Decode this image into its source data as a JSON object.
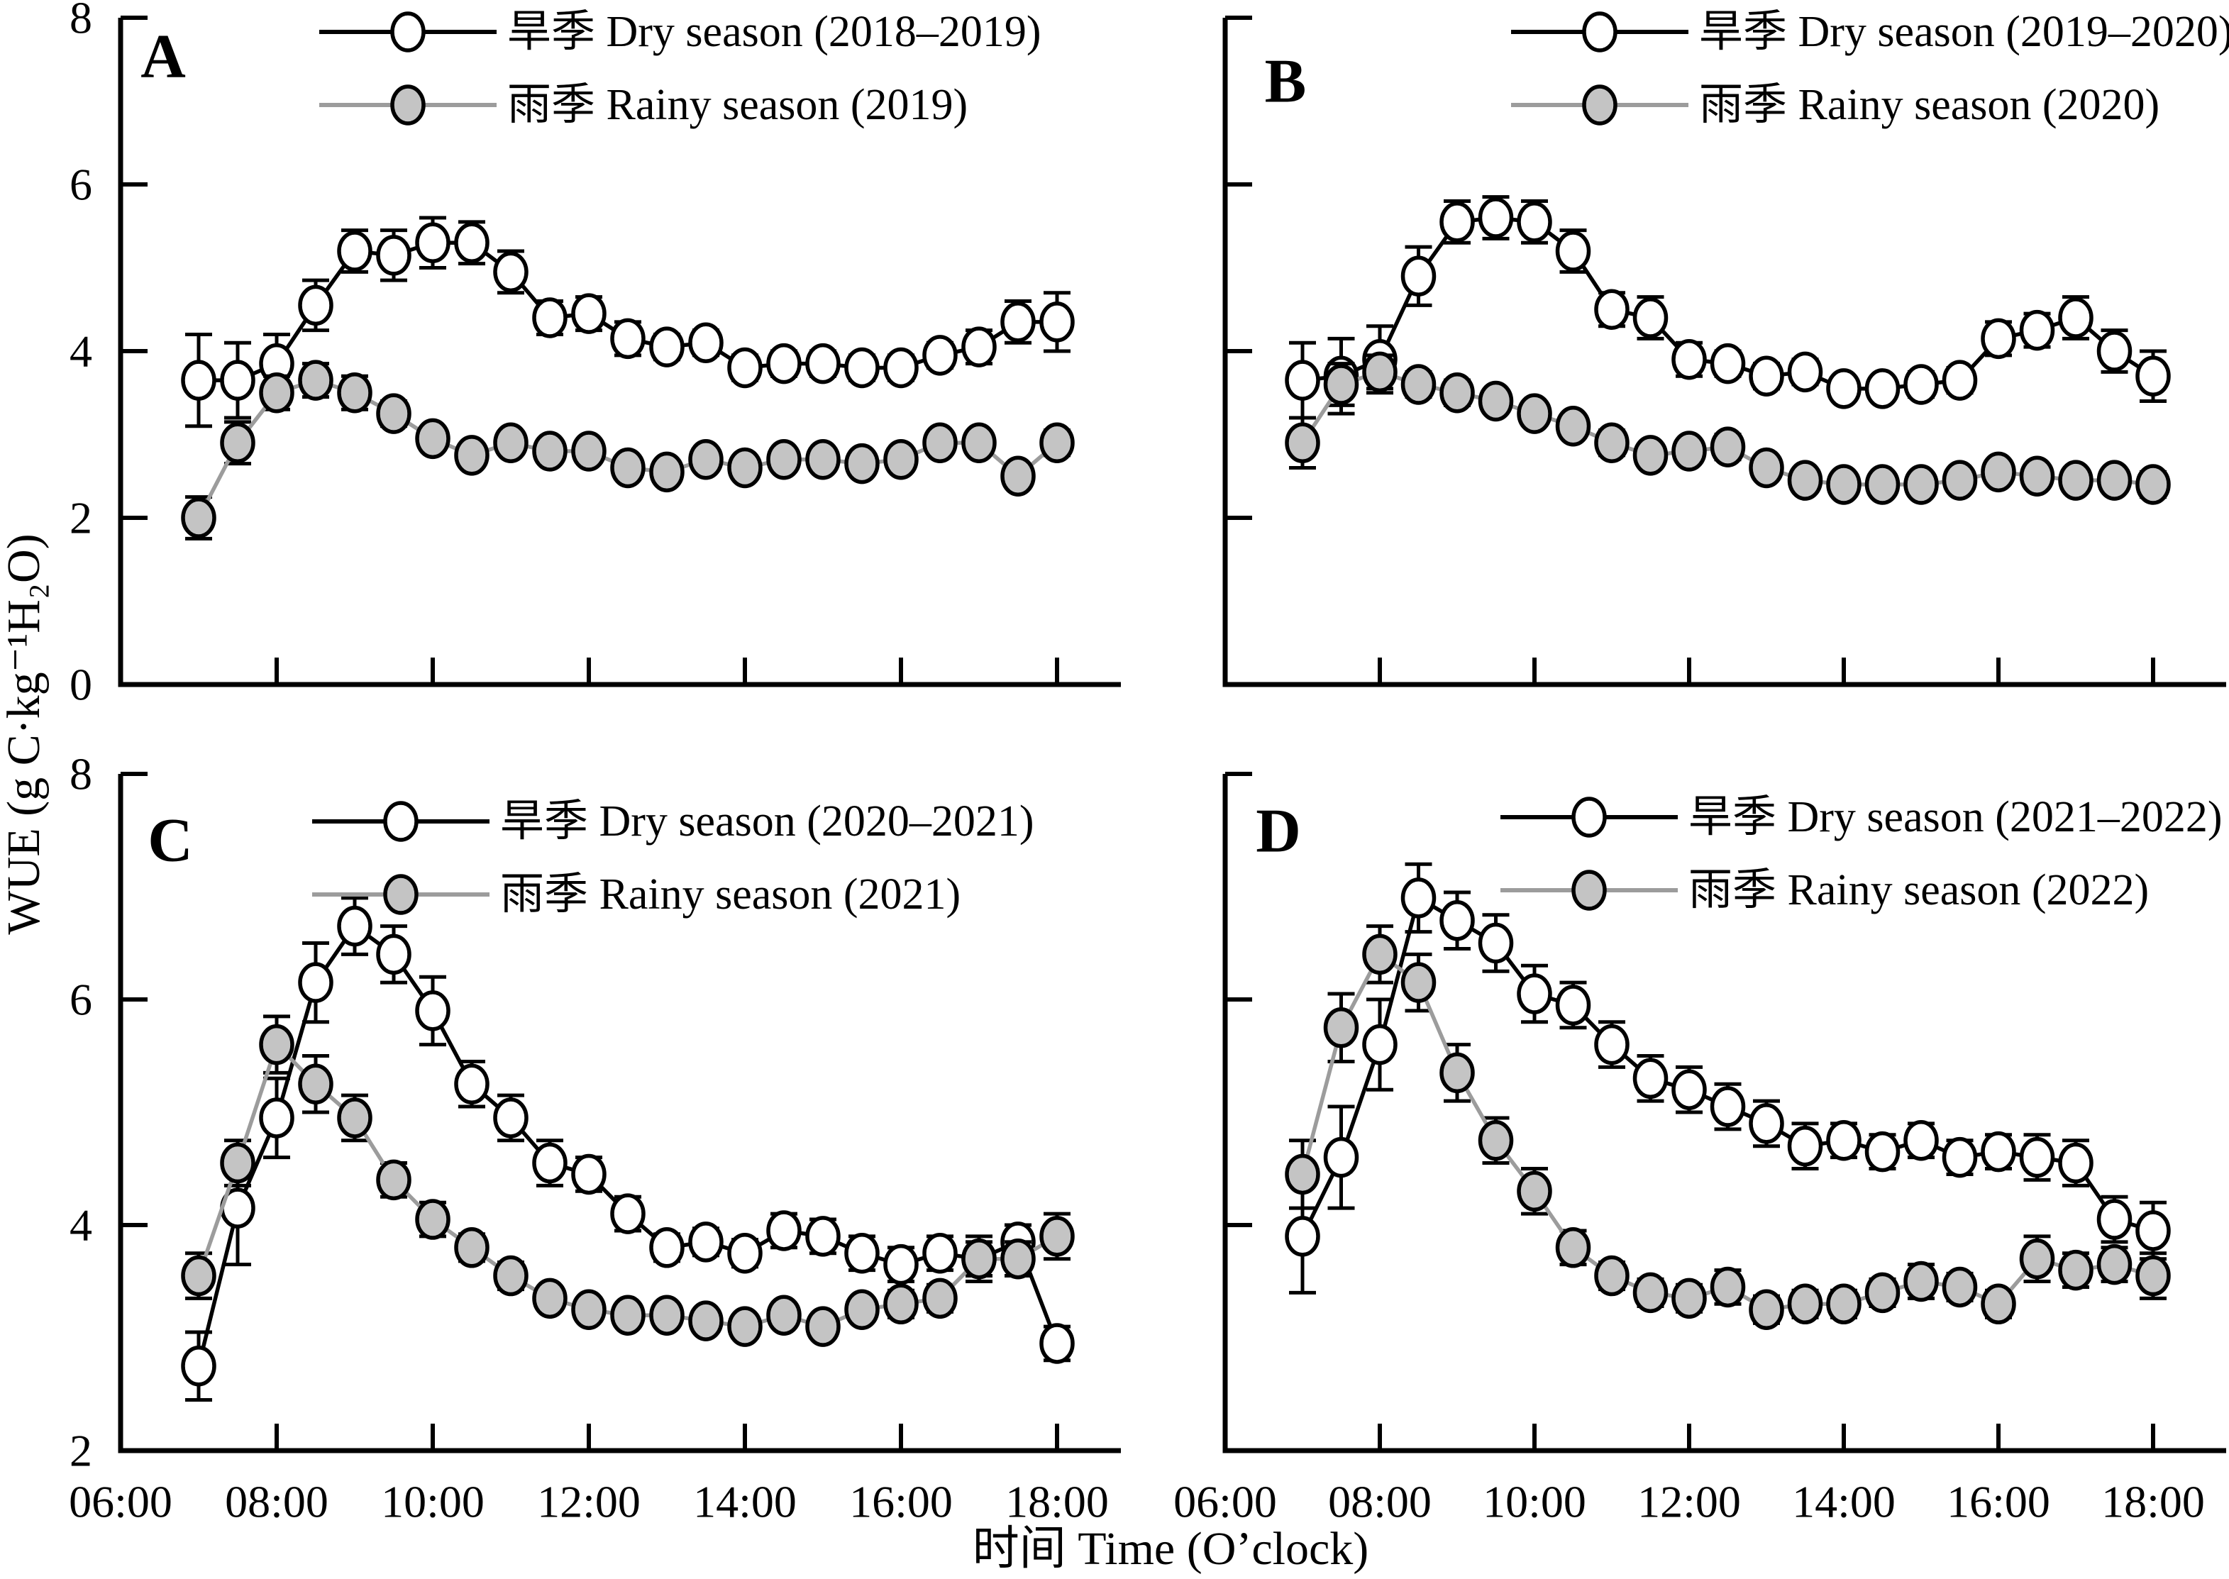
{
  "figure": {
    "y_axis_label": "WUE (g C·kg⁻¹H₂O)",
    "x_axis_label": "时间 Time (O’clock)",
    "background": "#ffffff"
  },
  "styles": {
    "dry": {
      "line_color": "#000000",
      "marker_fill": "#ffffff",
      "marker_stroke": "#000000"
    },
    "rainy": {
      "line_color": "#9c9c9c",
      "marker_fill": "#c4c4c4",
      "marker_stroke": "#000000"
    },
    "error_bar_color": "#000000",
    "axis_color": "#000000",
    "text_color": "#000000"
  },
  "axes": {
    "x_tick_labels": [
      "06:00",
      "08:00",
      "10:00",
      "12:00",
      "14:00",
      "16:00",
      "18:00"
    ],
    "x_tick_hours": [
      6,
      8,
      10,
      12,
      14,
      16,
      18
    ],
    "x_hours": [
      7,
      7.5,
      8,
      8.5,
      9,
      9.5,
      10,
      10.5,
      11,
      11.5,
      12,
      12.5,
      13,
      13.5,
      14,
      14.5,
      15,
      15.5,
      16,
      16.5,
      17,
      17.5,
      18
    ],
    "x_time_labels": [
      "07:00",
      "07:30",
      "08:00",
      "08:30",
      "09:00",
      "09:30",
      "10:00",
      "10:30",
      "11:00",
      "11:30",
      "12:00",
      "12:30",
      "13:00",
      "13:30",
      "14:00",
      "14:30",
      "15:00",
      "15:30",
      "16:00",
      "16:30",
      "17:00",
      "17:30",
      "18:00"
    ],
    "top_row_ylim": [
      0,
      8
    ],
    "top_row_yticks": [
      0,
      2,
      4,
      6,
      8
    ],
    "bottom_row_ylim": [
      2,
      8
    ],
    "bottom_row_yticks": [
      2,
      4,
      6,
      8
    ],
    "grid": "off",
    "legend_position": "top-inside"
  },
  "chart_data": [
    {
      "panel": "A",
      "type": "line",
      "title": "",
      "xlabel": "时间 Time (O’clock)",
      "ylabel": "WUE (g C·kg⁻¹H₂O)",
      "ylim": [
        0,
        8
      ],
      "series": [
        {
          "name": "旱季 Dry season (2018–2019)",
          "style": "dry",
          "values": [
            3.65,
            3.65,
            3.85,
            4.55,
            5.2,
            5.15,
            5.3,
            5.3,
            4.95,
            4.4,
            4.45,
            4.15,
            4.05,
            4.1,
            3.8,
            3.85,
            3.85,
            3.8,
            3.8,
            3.95,
            4.05,
            4.35,
            4.35
          ],
          "errors": [
            0.55,
            0.45,
            0.35,
            0.3,
            0.25,
            0.3,
            0.3,
            0.25,
            0.25,
            0.2,
            0.2,
            0.2,
            0.15,
            0.15,
            0.15,
            0.15,
            0.15,
            0.15,
            0.15,
            0.15,
            0.2,
            0.25,
            0.35
          ]
        },
        {
          "name": "雨季 Rainy season (2019)",
          "style": "rainy",
          "values": [
            2.0,
            2.9,
            3.5,
            3.65,
            3.5,
            3.25,
            2.95,
            2.75,
            2.9,
            2.8,
            2.8,
            2.6,
            2.55,
            2.7,
            2.6,
            2.7,
            2.7,
            2.65,
            2.7,
            2.9,
            2.9,
            2.5,
            2.9
          ],
          "errors": [
            0.25,
            0.25,
            0.2,
            0.2,
            0.2,
            0.15,
            0.12,
            0.12,
            0.12,
            0.1,
            0.1,
            0.1,
            0.1,
            0.1,
            0.1,
            0.1,
            0.12,
            0.1,
            0.12,
            0.12,
            0.12,
            0.12,
            0.15
          ]
        }
      ]
    },
    {
      "panel": "B",
      "type": "line",
      "title": "",
      "xlabel": "时间 Time (O’clock)",
      "ylabel": "WUE (g C·kg⁻¹H₂O)",
      "ylim": [
        0,
        8
      ],
      "series": [
        {
          "name": "旱季 Dry season (2019–2020)",
          "style": "dry",
          "values": [
            3.65,
            3.7,
            3.9,
            4.9,
            5.55,
            5.6,
            5.55,
            5.2,
            4.5,
            4.4,
            3.9,
            3.85,
            3.7,
            3.75,
            3.55,
            3.55,
            3.6,
            3.65,
            4.15,
            4.25,
            4.4,
            4.0,
            3.7
          ],
          "errors": [
            0.45,
            0.45,
            0.4,
            0.35,
            0.25,
            0.25,
            0.25,
            0.25,
            0.2,
            0.25,
            0.2,
            0.15,
            0.15,
            0.15,
            0.12,
            0.12,
            0.15,
            0.15,
            0.2,
            0.2,
            0.25,
            0.25,
            0.3
          ]
        },
        {
          "name": "雨季 Rainy season (2020)",
          "style": "rainy",
          "values": [
            2.9,
            3.6,
            3.75,
            3.6,
            3.5,
            3.4,
            3.25,
            3.1,
            2.9,
            2.75,
            2.8,
            2.85,
            2.6,
            2.45,
            2.4,
            2.4,
            2.4,
            2.45,
            2.55,
            2.5,
            2.45,
            2.45,
            2.4
          ],
          "errors": [
            0.3,
            0.25,
            0.2,
            0.15,
            0.15,
            0.12,
            0.12,
            0.12,
            0.15,
            0.12,
            0.12,
            0.15,
            0.12,
            0.1,
            0.1,
            0.1,
            0.12,
            0.1,
            0.1,
            0.1,
            0.1,
            0.1,
            0.15
          ]
        }
      ]
    },
    {
      "panel": "C",
      "type": "line",
      "title": "",
      "xlabel": "时间 Time (O’clock)",
      "ylabel": "WUE (g C·kg⁻¹H₂O)",
      "ylim": [
        2,
        8
      ],
      "series": [
        {
          "name": "旱季 Dry season (2020–2021)",
          "style": "dry",
          "values": [
            2.75,
            4.15,
            4.95,
            6.15,
            6.65,
            6.4,
            5.9,
            5.25,
            4.95,
            4.55,
            4.45,
            4.1,
            3.8,
            3.85,
            3.75,
            3.95,
            3.9,
            3.75,
            3.65,
            3.75,
            3.7,
            3.85,
            2.95
          ],
          "errors": [
            0.3,
            0.5,
            0.35,
            0.35,
            0.25,
            0.25,
            0.3,
            0.2,
            0.2,
            0.2,
            0.15,
            0.15,
            0.12,
            0.12,
            0.12,
            0.15,
            0.15,
            0.15,
            0.15,
            0.15,
            0.2,
            0.15,
            0.15
          ]
        },
        {
          "name": "雨季 Rainy season (2021)",
          "style": "rainy",
          "values": [
            3.55,
            4.55,
            5.6,
            5.25,
            4.95,
            4.4,
            4.05,
            3.8,
            3.55,
            3.35,
            3.25,
            3.2,
            3.2,
            3.15,
            3.1,
            3.2,
            3.1,
            3.25,
            3.3,
            3.35,
            3.7,
            3.7,
            3.9
          ],
          "errors": [
            0.2,
            0.2,
            0.25,
            0.25,
            0.2,
            0.15,
            0.15,
            0.12,
            0.12,
            0.1,
            0.1,
            0.1,
            0.1,
            0.1,
            0.1,
            0.1,
            0.1,
            0.1,
            0.12,
            0.12,
            0.15,
            0.15,
            0.2
          ]
        }
      ]
    },
    {
      "panel": "D",
      "type": "line",
      "title": "",
      "xlabel": "时间 Time (O’clock)",
      "ylabel": "WUE (g C·kg⁻¹H₂O)",
      "ylim": [
        2,
        8
      ],
      "series": [
        {
          "name": "旱季 Dry season (2021–2022)",
          "style": "dry",
          "values": [
            3.9,
            4.6,
            5.6,
            6.9,
            6.7,
            6.5,
            6.05,
            5.95,
            5.6,
            5.3,
            5.2,
            5.05,
            4.9,
            4.7,
            4.75,
            4.65,
            4.75,
            4.6,
            4.65,
            4.6,
            4.55,
            4.05,
            3.95
          ],
          "errors": [
            0.5,
            0.45,
            0.4,
            0.3,
            0.25,
            0.25,
            0.25,
            0.2,
            0.2,
            0.2,
            0.2,
            0.2,
            0.2,
            0.2,
            0.15,
            0.15,
            0.15,
            0.15,
            0.15,
            0.2,
            0.2,
            0.2,
            0.25
          ]
        },
        {
          "name": "雨季 Rainy season (2022)",
          "style": "rainy",
          "values": [
            4.45,
            5.75,
            6.4,
            6.15,
            5.35,
            4.75,
            4.3,
            3.8,
            3.55,
            3.4,
            3.35,
            3.45,
            3.25,
            3.3,
            3.3,
            3.4,
            3.5,
            3.45,
            3.3,
            3.7,
            3.6,
            3.65,
            3.55
          ],
          "errors": [
            0.3,
            0.3,
            0.25,
            0.25,
            0.25,
            0.2,
            0.2,
            0.15,
            0.12,
            0.12,
            0.12,
            0.15,
            0.12,
            0.12,
            0.12,
            0.12,
            0.15,
            0.12,
            0.12,
            0.2,
            0.15,
            0.15,
            0.2
          ]
        }
      ]
    }
  ],
  "panel_letters": [
    "A",
    "B",
    "C",
    "D"
  ]
}
